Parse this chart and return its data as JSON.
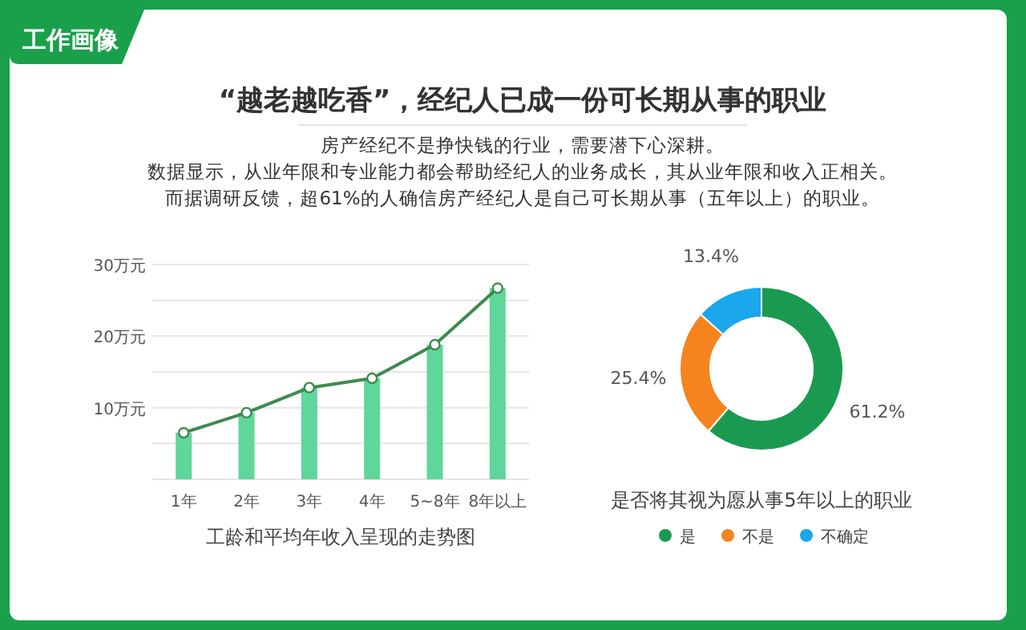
{
  "chart_data": [
    {
      "type": "other",
      "title": "“越老越吃香”，经纪人已成一份可长期从事的职业",
      "annotations": [
        "工作画像",
        "房产经纪不是挣快钱的行业，需要潜下心深耕。",
        "数据显示，从业年限和专业能力都会帮助经纪人的业务成长，其从业年限和收入正相关。",
        "而据调研反馈，超61%的人确信房产经纪人是自己可长期从事（五年以上）的职业。"
      ]
    },
    {
      "type": "bar",
      "xlabel": "工龄和平均年收入呈现的走势图",
      "categories": [
        "1年",
        "2年",
        "3年",
        "4年",
        "5~8年",
        "8年以上"
      ],
      "series": [
        {
          "type": "bar",
          "color": "#5fd69a",
          "values": [
            6.5,
            9.3,
            12.8,
            14.1,
            18.8,
            26.7
          ]
        },
        {
          "type": "line",
          "color": "#3d8b4f",
          "values": [
            6.5,
            9.3,
            12.8,
            14.1,
            18.8,
            26.7
          ]
        }
      ],
      "ylim": [
        0,
        30
      ],
      "yticks": [
        {
          "value": 0,
          "label": null
        },
        {
          "value": 5,
          "label": null
        },
        {
          "value": 10,
          "label": "10万元"
        },
        {
          "value": 15,
          "label": null
        },
        {
          "value": 20,
          "label": "20万元"
        },
        {
          "value": 25,
          "label": null
        },
        {
          "value": 30,
          "label": "30万元"
        }
      ],
      "grid": "y",
      "marker": "circle"
    },
    {
      "type": "donut",
      "title": "是否将其视为愿从事5年以上的职业",
      "categories": [
        "是",
        "不是",
        "不确定"
      ],
      "values": [
        61.2,
        25.4,
        13.4
      ],
      "colors": [
        "#1a9a50",
        "#f5841f",
        "#1aa7ec"
      ],
      "value_labels": [
        "61.2%",
        "25.4%",
        "13.4%"
      ],
      "legend": "bottom"
    }
  ]
}
